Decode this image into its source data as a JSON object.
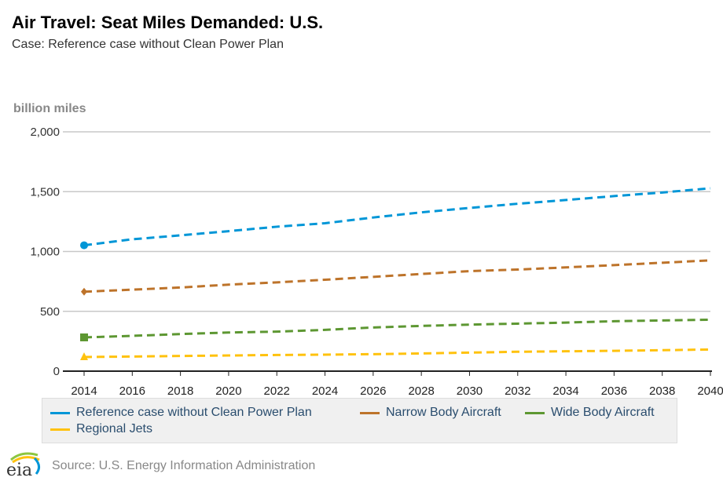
{
  "chart_data": {
    "type": "line",
    "title": "Air Travel: Seat Miles Demanded: U.S.",
    "subtitle": "Case: Reference case without Clean Power Plan",
    "ylabel": "billion miles",
    "ylim": [
      0,
      2000
    ],
    "yticks": [
      "0",
      "500",
      "1,000",
      "1,500",
      "2,000"
    ],
    "ytick_values": [
      0,
      500,
      1000,
      1500,
      2000
    ],
    "x": [
      2014,
      2016,
      2018,
      2020,
      2022,
      2024,
      2026,
      2028,
      2030,
      2032,
      2034,
      2036,
      2038,
      2040
    ],
    "xticks": [
      "2014",
      "2016",
      "2018",
      "2020",
      "2022",
      "2024",
      "2026",
      "2028",
      "2030",
      "2032",
      "2034",
      "2036",
      "2038",
      "2040"
    ],
    "grid": true,
    "legend_position": "bottom",
    "series": [
      {
        "name": "Reference case without Clean Power Plan",
        "color": "#0096d7",
        "marker": "circle",
        "values": [
          1052,
          1102,
          1135,
          1170,
          1207,
          1236,
          1284,
          1327,
          1364,
          1399,
          1430,
          1463,
          1493,
          1528
        ]
      },
      {
        "name": "Narrow Body Aircraft",
        "color": "#bd732a",
        "marker": "diamond",
        "values": [
          664,
          681,
          699,
          723,
          742,
          764,
          788,
          812,
          836,
          849,
          867,
          886,
          906,
          926
        ]
      },
      {
        "name": "Wide Body Aircraft",
        "color": "#5d9732",
        "marker": "square",
        "values": [
          282,
          295,
          310,
          323,
          330,
          345,
          365,
          378,
          389,
          397,
          406,
          417,
          424,
          430
        ]
      },
      {
        "name": "Regional Jets",
        "color": "#ffc20e",
        "marker": "triangle",
        "values": [
          118,
          122,
          127,
          131,
          135,
          138,
          142,
          148,
          155,
          162,
          166,
          170,
          175,
          181
        ]
      }
    ]
  },
  "source": "Source: U.S. Energy Information Administration",
  "logo_text": "eia"
}
